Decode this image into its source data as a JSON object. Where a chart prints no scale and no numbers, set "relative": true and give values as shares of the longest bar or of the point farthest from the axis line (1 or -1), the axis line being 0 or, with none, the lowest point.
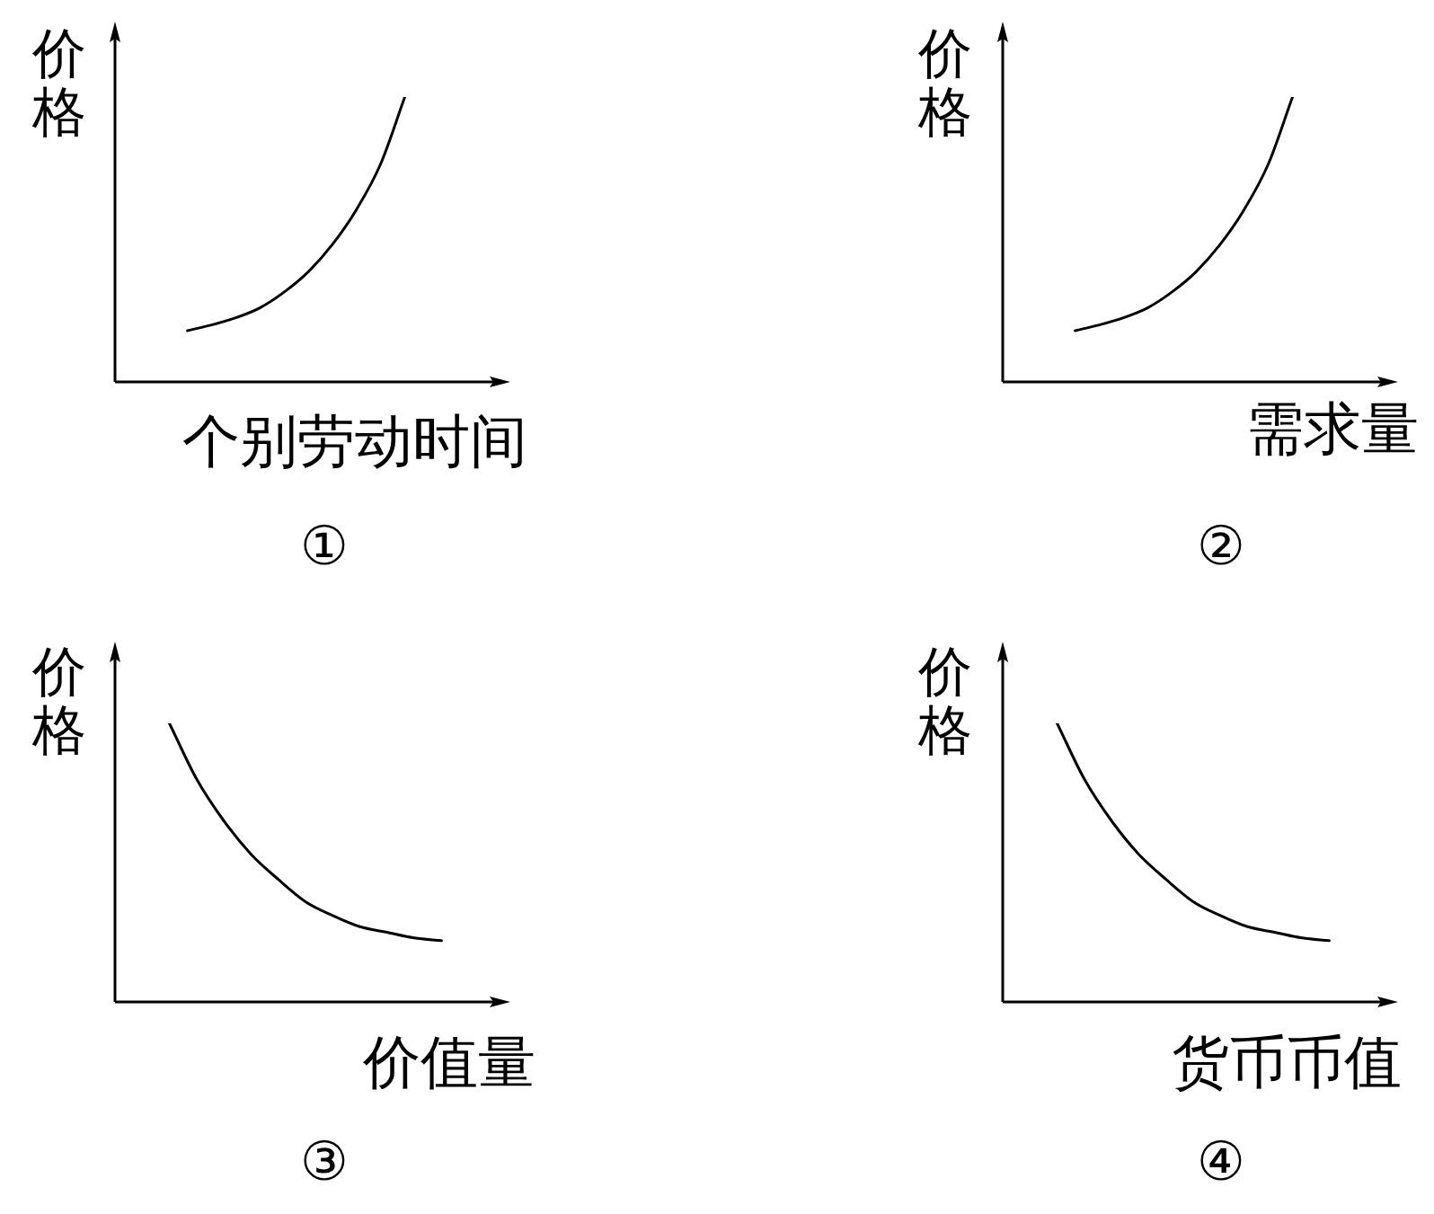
{
  "chart_data": [
    {
      "type": "line",
      "title": "①",
      "xlabel": "个别劳动时间",
      "ylabel": "价格",
      "relative": true,
      "marker": "none",
      "color": "#000000",
      "categories": [
        null,
        null,
        null,
        null,
        null,
        null,
        null,
        null,
        null,
        null,
        null,
        null,
        null,
        null,
        null,
        null,
        null
      ],
      "values": [
        null,
        null,
        null,
        0.18,
        0.2,
        0.225,
        0.26,
        0.315,
        0.386,
        0.482,
        0.605,
        0.765,
        1,
        null,
        null,
        null,
        null
      ]
    },
    {
      "type": "line",
      "title": "②",
      "xlabel": "需求量",
      "ylabel": "价格",
      "relative": true,
      "marker": "none",
      "color": "#000000",
      "categories": [
        null,
        null,
        null,
        null,
        null,
        null,
        null,
        null,
        null,
        null,
        null,
        null,
        null,
        null,
        null,
        null,
        null
      ],
      "values": [
        null,
        null,
        null,
        0.18,
        0.2,
        0.225,
        0.26,
        0.315,
        0.386,
        0.482,
        0.605,
        0.765,
        1,
        null,
        null,
        null,
        null
      ]
    },
    {
      "type": "line",
      "title": "③",
      "xlabel": "价值量",
      "ylabel": "价格",
      "relative": true,
      "marker": "none",
      "color": "#000000",
      "categories": [
        null,
        null,
        null,
        null,
        null,
        null,
        null,
        null,
        null,
        null,
        null,
        null,
        null,
        null,
        null
      ],
      "values": [
        null,
        null,
        1,
        0.8,
        0.65,
        0.53,
        0.44,
        0.36,
        0.31,
        0.27,
        0.25,
        0.23,
        0.22,
        null,
        null
      ]
    },
    {
      "type": "line",
      "title": "④",
      "xlabel": "货币币值",
      "ylabel": "价格",
      "relative": true,
      "marker": "none",
      "color": "#000000",
      "categories": [
        null,
        null,
        null,
        null,
        null,
        null,
        null,
        null,
        null,
        null,
        null,
        null,
        null,
        null,
        null
      ],
      "values": [
        null,
        null,
        1,
        0.8,
        0.65,
        0.53,
        0.44,
        0.36,
        0.31,
        0.27,
        0.25,
        0.23,
        0.22,
        null,
        null
      ]
    }
  ]
}
